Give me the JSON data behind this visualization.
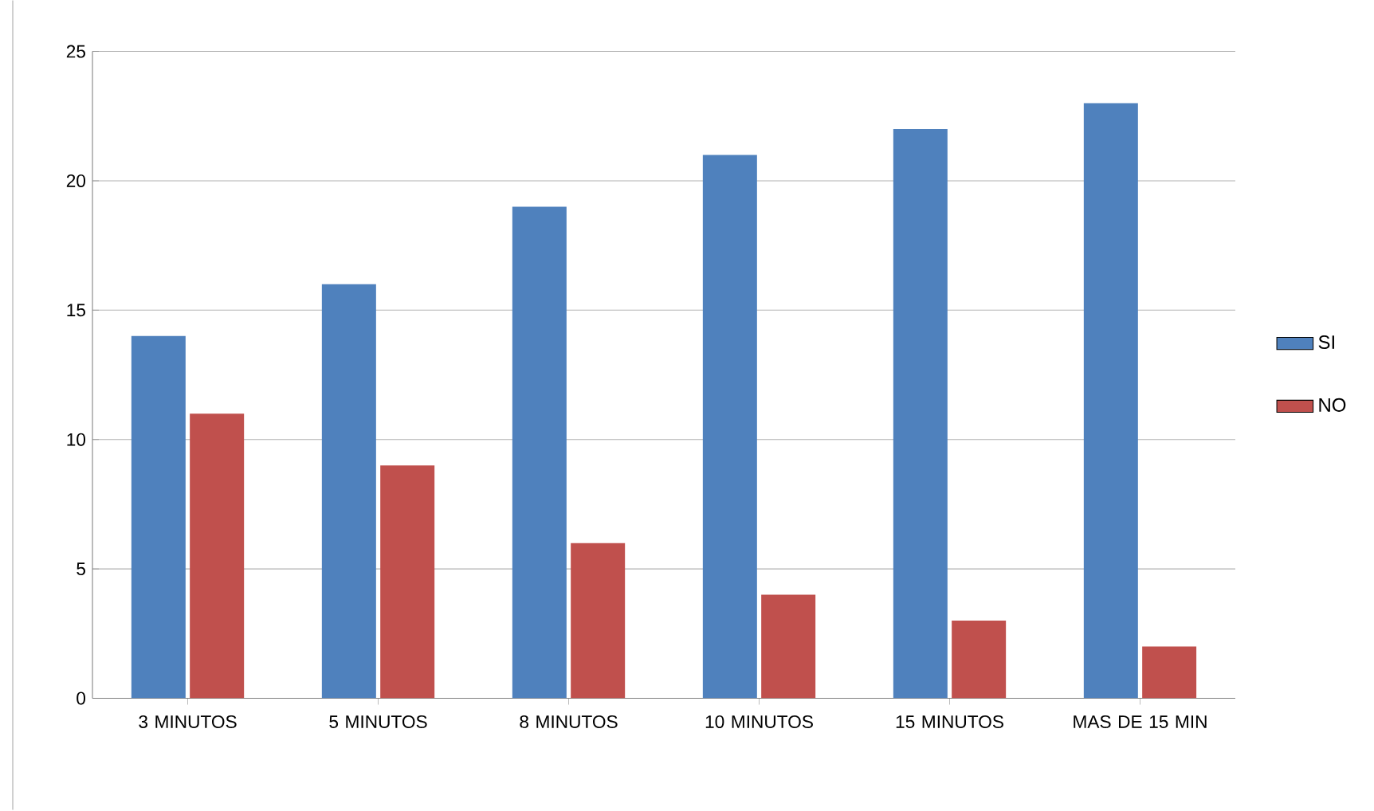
{
  "chart_data": {
    "type": "bar",
    "categories": [
      "3 MINUTOS",
      "5 MINUTOS",
      "8 MINUTOS",
      "10 MINUTOS",
      "15 MINUTOS",
      "MAS DE 15 MIN"
    ],
    "series": [
      {
        "name": "SI",
        "color": "#4f81bd",
        "values": [
          14,
          16,
          19,
          21,
          22,
          23
        ]
      },
      {
        "name": "NO",
        "color": "#c0504d",
        "values": [
          11,
          9,
          6,
          4,
          3,
          2
        ]
      }
    ],
    "ylim": [
      0,
      25
    ],
    "yticks": [
      0,
      5,
      10,
      15,
      20,
      25
    ],
    "grid": "y",
    "legend": "right"
  }
}
